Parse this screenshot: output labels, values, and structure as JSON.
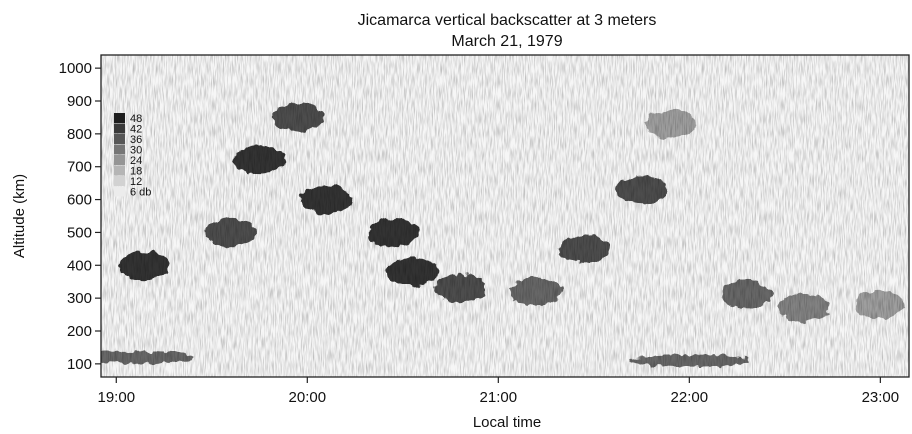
{
  "chart_data": {
    "type": "heatmap",
    "title": "Jicamarca vertical backscatter at 3 meters",
    "subtitle": "March 21, 1979",
    "xlabel": "Local time",
    "ylabel": "Altitude (km)",
    "x_tick_labels": [
      "19:00",
      "20:00",
      "21:00",
      "22:00",
      "23:00"
    ],
    "x_ticks_hours": [
      19,
      20,
      21,
      22,
      23
    ],
    "xlim_hours": [
      18.92,
      23.15
    ],
    "y_ticks": [
      100,
      200,
      300,
      400,
      500,
      600,
      700,
      800,
      900,
      1000
    ],
    "ylim": [
      60,
      1040
    ],
    "legend": {
      "placement": "top-left",
      "levels": [
        "48",
        "42",
        "36",
        "30",
        "24",
        "18",
        "12",
        "6 db"
      ],
      "colors": [
        "#1e1e1e",
        "#3a3a3a",
        "#575757",
        "#767676",
        "#959595",
        "#b5b5b5",
        "#d2d2d2",
        "#ececec"
      ]
    },
    "features": [
      {
        "t": 19.1,
        "alt": 120,
        "db": 36
      },
      {
        "t": 19.15,
        "alt": 400,
        "db": 48
      },
      {
        "t": 19.6,
        "alt": 500,
        "db": 42
      },
      {
        "t": 19.75,
        "alt": 720,
        "db": 48
      },
      {
        "t": 19.95,
        "alt": 850,
        "db": 42
      },
      {
        "t": 20.1,
        "alt": 600,
        "db": 48
      },
      {
        "t": 20.45,
        "alt": 500,
        "db": 48
      },
      {
        "t": 20.55,
        "alt": 380,
        "db": 48
      },
      {
        "t": 20.8,
        "alt": 330,
        "db": 42
      },
      {
        "t": 21.2,
        "alt": 320,
        "db": 36
      },
      {
        "t": 21.45,
        "alt": 450,
        "db": 42
      },
      {
        "t": 21.75,
        "alt": 630,
        "db": 42
      },
      {
        "t": 21.9,
        "alt": 830,
        "db": 24
      },
      {
        "t": 22.3,
        "alt": 310,
        "db": 36
      },
      {
        "t": 22.6,
        "alt": 270,
        "db": 30
      },
      {
        "t": 23.0,
        "alt": 280,
        "db": 24
      },
      {
        "t": 22.0,
        "alt": 110,
        "db": 36
      }
    ]
  }
}
